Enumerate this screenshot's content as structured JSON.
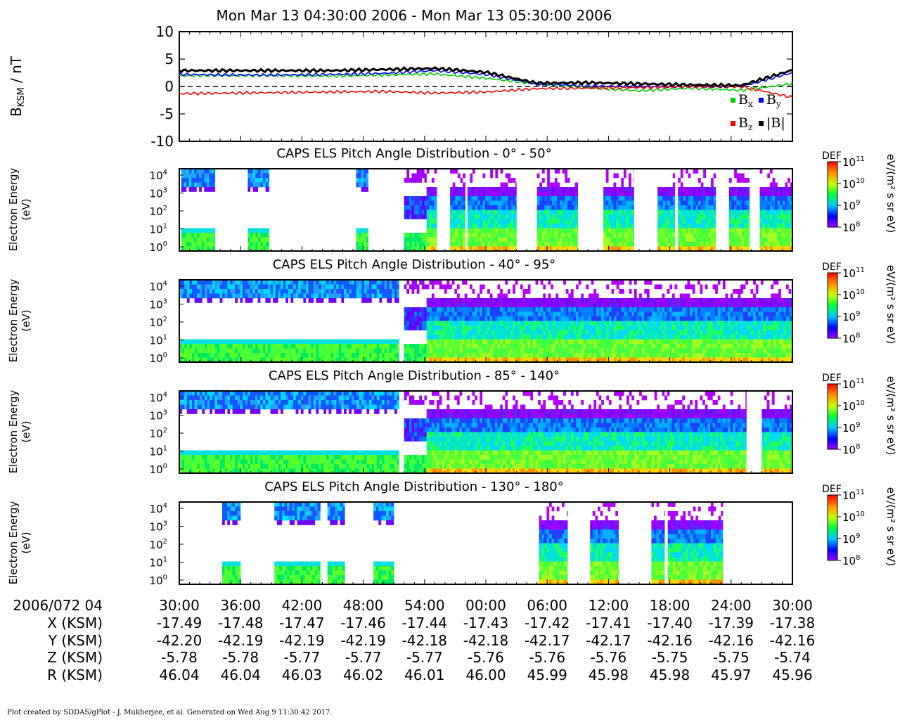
{
  "title": "Mon Mar 13 04:30:00 2006 - Mon Mar 13 05:30:00 2006",
  "footer": "Plot created by SDDAS/gPlot - J. Mukherjee, et al.  Generated on Wed Aug  9 11:30:42 2017.",
  "colors": {
    "bx": "#00cc00",
    "by": "#0000ff",
    "bz": "#ff0000",
    "bt": "#000000"
  },
  "chart_data": [
    {
      "type": "line",
      "ylabel_main": "B",
      "ylabel_sub": "KSM",
      "ylabel_unit": " / nT",
      "ylim": [
        -10,
        10
      ],
      "yticks": [
        "10",
        "5",
        "0",
        "-5",
        "-10"
      ],
      "x_minutes": [
        0,
        5,
        10,
        15,
        20,
        25,
        30,
        35,
        40,
        45,
        50,
        55,
        60
      ],
      "zero_line": "dashed",
      "legend": [
        {
          "base": "B",
          "sub": "x",
          "color": "#00cc00"
        },
        {
          "base": "B",
          "sub": "y",
          "color": "#0000ff"
        },
        {
          "base": "B",
          "sub": "z",
          "color": "#ff0000"
        },
        {
          "base": "|B|",
          "sub": "",
          "color": "#000000"
        }
      ],
      "series": [
        {
          "values": [
            2.0,
            2.0,
            2.0,
            1.9,
            2.1,
            2.3,
            1.5,
            0.5,
            -0.2,
            -0.8,
            -0.3,
            -0.7,
            0.5
          ]
        },
        {
          "values": [
            2.2,
            2.1,
            2.1,
            2.2,
            2.4,
            2.9,
            2.2,
            0.5,
            0.1,
            0.0,
            0.0,
            0.0,
            2.5
          ]
        },
        {
          "values": [
            -1.3,
            -1.2,
            -1.1,
            -1.0,
            -0.9,
            -1.2,
            -1.0,
            -0.4,
            -0.3,
            -0.2,
            0.0,
            0.0,
            -2.0
          ]
        },
        {
          "values": [
            2.9,
            2.9,
            2.9,
            2.9,
            3.1,
            3.3,
            2.6,
            0.6,
            0.7,
            0.5,
            0.3,
            0.2,
            3.0
          ]
        }
      ]
    },
    {
      "type": "heatmap",
      "title": "CAPS ELS Pitch Angle Distribution - 0° - 50°",
      "ylabel": "Electron Energy",
      "ylabel2": "(eV)",
      "yticks": [
        "10",
        "10",
        "10",
        "10",
        "10"
      ],
      "ytick_exp": [
        "4",
        "3",
        "2",
        "1",
        "0"
      ],
      "colorbar": {
        "label": "DEF",
        "unit": "eV/(m² s sr eV)",
        "ticks": [
          "11",
          "10",
          "9",
          "8"
        ]
      },
      "segments": [
        [
          0.2,
          3.5,
          "A"
        ],
        [
          6.7,
          8.8,
          "A"
        ],
        [
          17.3,
          18.5,
          "A"
        ],
        [
          22.0,
          24.2,
          "B"
        ],
        [
          24.2,
          25.2,
          "C"
        ],
        [
          26.5,
          28.0,
          "C"
        ],
        [
          28.2,
          33.0,
          "C"
        ],
        [
          35.0,
          39.0,
          "C"
        ],
        [
          41.5,
          44.5,
          "C"
        ],
        [
          46.8,
          48.5,
          "C"
        ],
        [
          48.8,
          52.5,
          "C"
        ],
        [
          53.8,
          55.8,
          "C"
        ],
        [
          56.8,
          60.0,
          "C"
        ]
      ]
    },
    {
      "type": "heatmap",
      "title": "CAPS ELS Pitch Angle Distribution - 40° - 95°",
      "ylabel": "Electron Energy",
      "ylabel2": "(eV)",
      "yticks": [
        "10",
        "10",
        "10",
        "10",
        "10"
      ],
      "ytick_exp": [
        "4",
        "3",
        "2",
        "1",
        "0"
      ],
      "colorbar": {
        "label": "DEF",
        "unit": "eV/(m² s sr eV)",
        "ticks": [
          "11",
          "10",
          "9",
          "8"
        ]
      },
      "segments": [
        [
          0.0,
          21.5,
          "A"
        ],
        [
          22.0,
          24.2,
          "B"
        ],
        [
          24.2,
          60.0,
          "C"
        ]
      ]
    },
    {
      "type": "heatmap",
      "title": "CAPS ELS Pitch Angle Distribution - 85° - 140°",
      "ylabel": "Electron Energy",
      "ylabel2": "(eV)",
      "yticks": [
        "10",
        "10",
        "10",
        "10",
        "10"
      ],
      "ytick_exp": [
        "4",
        "3",
        "2",
        "1",
        "0"
      ],
      "colorbar": {
        "label": "DEF",
        "unit": "eV/(m² s sr eV)",
        "ticks": [
          "11",
          "10",
          "9",
          "8"
        ]
      },
      "segments": [
        [
          0.0,
          21.5,
          "A"
        ],
        [
          22.0,
          24.2,
          "B"
        ],
        [
          24.2,
          55.5,
          "C"
        ],
        [
          57.0,
          60.0,
          "C"
        ]
      ]
    },
    {
      "type": "heatmap",
      "title": "CAPS ELS Pitch Angle Distribution - 130° - 180°",
      "ylabel": "Electron Energy",
      "ylabel2": "(eV)",
      "yticks": [
        "10",
        "10",
        "10",
        "10",
        "10"
      ],
      "ytick_exp": [
        "4",
        "3",
        "2",
        "1",
        "0"
      ],
      "colorbar": {
        "label": "DEF",
        "unit": "eV/(m² s sr eV)",
        "ticks": [
          "11",
          "10",
          "9",
          "8"
        ]
      },
      "segments": [
        [
          4.2,
          6.0,
          "A"
        ],
        [
          9.3,
          13.8,
          "A"
        ],
        [
          14.5,
          16.2,
          "A"
        ],
        [
          19.0,
          21.0,
          "A"
        ],
        [
          35.2,
          38.0,
          "C"
        ],
        [
          40.2,
          43.0,
          "C"
        ],
        [
          46.2,
          47.5,
          "C"
        ],
        [
          47.8,
          53.2,
          "C"
        ]
      ]
    }
  ],
  "axis_table": {
    "row_labels": [
      "2006/072 04",
      "X (KSM)",
      "Y (KSM)",
      "Z (KSM)",
      "R (KSM)"
    ],
    "times": [
      "30:00",
      "36:00",
      "42:00",
      "48:00",
      "54:00",
      "00:00",
      "06:00",
      "12:00",
      "18:00",
      "24:00",
      "30:00"
    ],
    "x": [
      "-17.49",
      "-17.48",
      "-17.47",
      "-17.46",
      "-17.44",
      "-17.43",
      "-17.42",
      "-17.41",
      "-17.40",
      "-17.39",
      "-17.38"
    ],
    "y": [
      "-42.20",
      "-42.19",
      "-42.19",
      "-42.19",
      "-42.18",
      "-42.18",
      "-42.17",
      "-42.17",
      "-42.16",
      "-42.16",
      "-42.16"
    ],
    "z": [
      "-5.78",
      "-5.78",
      "-5.77",
      "-5.77",
      "-5.77",
      "-5.76",
      "-5.76",
      "-5.76",
      "-5.75",
      "-5.75",
      "-5.74"
    ],
    "r": [
      "46.04",
      "46.04",
      "46.03",
      "46.02",
      "46.01",
      "46.00",
      "45.99",
      "45.98",
      "45.98",
      "45.97",
      "45.96"
    ]
  }
}
